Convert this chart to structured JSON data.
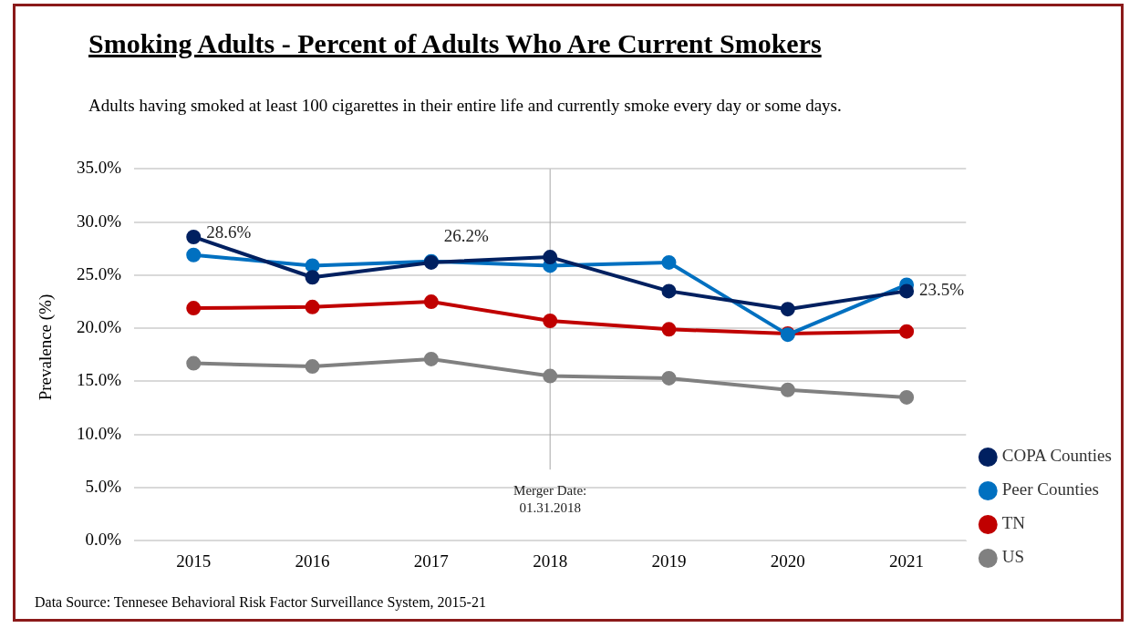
{
  "chart_data": {
    "type": "line",
    "title": "Smoking Adults - Percent of Adults Who Are Current Smokers",
    "subtitle": "Adults having smoked at least 100 cigarettes in their entire life and currently smoke every day or some days.",
    "ylabel": "Prevalence (%)",
    "categories": [
      "2015",
      "2016",
      "2017",
      "2018",
      "2019",
      "2020",
      "2021"
    ],
    "series": [
      {
        "name": "COPA Counties",
        "color": "#002060",
        "values": [
          28.6,
          24.8,
          26.2,
          26.7,
          23.5,
          21.8,
          23.5
        ],
        "value_labels": [
          "28.6%",
          null,
          "26.2%",
          null,
          null,
          null,
          "23.5%"
        ]
      },
      {
        "name": "Peer Counties",
        "color": "#0070c0",
        "values": [
          26.9,
          25.9,
          26.3,
          25.9,
          26.2,
          19.4,
          24.1
        ]
      },
      {
        "name": "TN",
        "color": "#c00000",
        "values": [
          21.9,
          22.0,
          22.5,
          20.7,
          19.9,
          19.5,
          19.7
        ]
      },
      {
        "name": "US",
        "color": "#808080",
        "values": [
          16.7,
          16.4,
          17.1,
          15.5,
          15.3,
          14.2,
          13.5
        ]
      }
    ],
    "ylim": [
      0,
      35
    ],
    "yticks": [
      {
        "value": 0,
        "label": "0.0%"
      },
      {
        "value": 5,
        "label": "5.0%"
      },
      {
        "value": 10,
        "label": "10.0%"
      },
      {
        "value": 15,
        "label": "15.0%"
      },
      {
        "value": 20,
        "label": "20.0%"
      },
      {
        "value": 25,
        "label": "25.0%"
      },
      {
        "value": 30,
        "label": "30.0%"
      },
      {
        "value": 35,
        "label": "35.0%"
      }
    ],
    "ref_lines": [
      {
        "axis": "x",
        "value": "2018",
        "label": "Merger Date:\n01.31.2018",
        "color": "#a6a6a6"
      }
    ],
    "annotations": [
      "Data Source: Tennesee Behavioral Risk Factor Surveillance System, 2015-21"
    ],
    "grid": "y",
    "legend": "bottom right",
    "marker": "circle",
    "line_style": "solid"
  }
}
